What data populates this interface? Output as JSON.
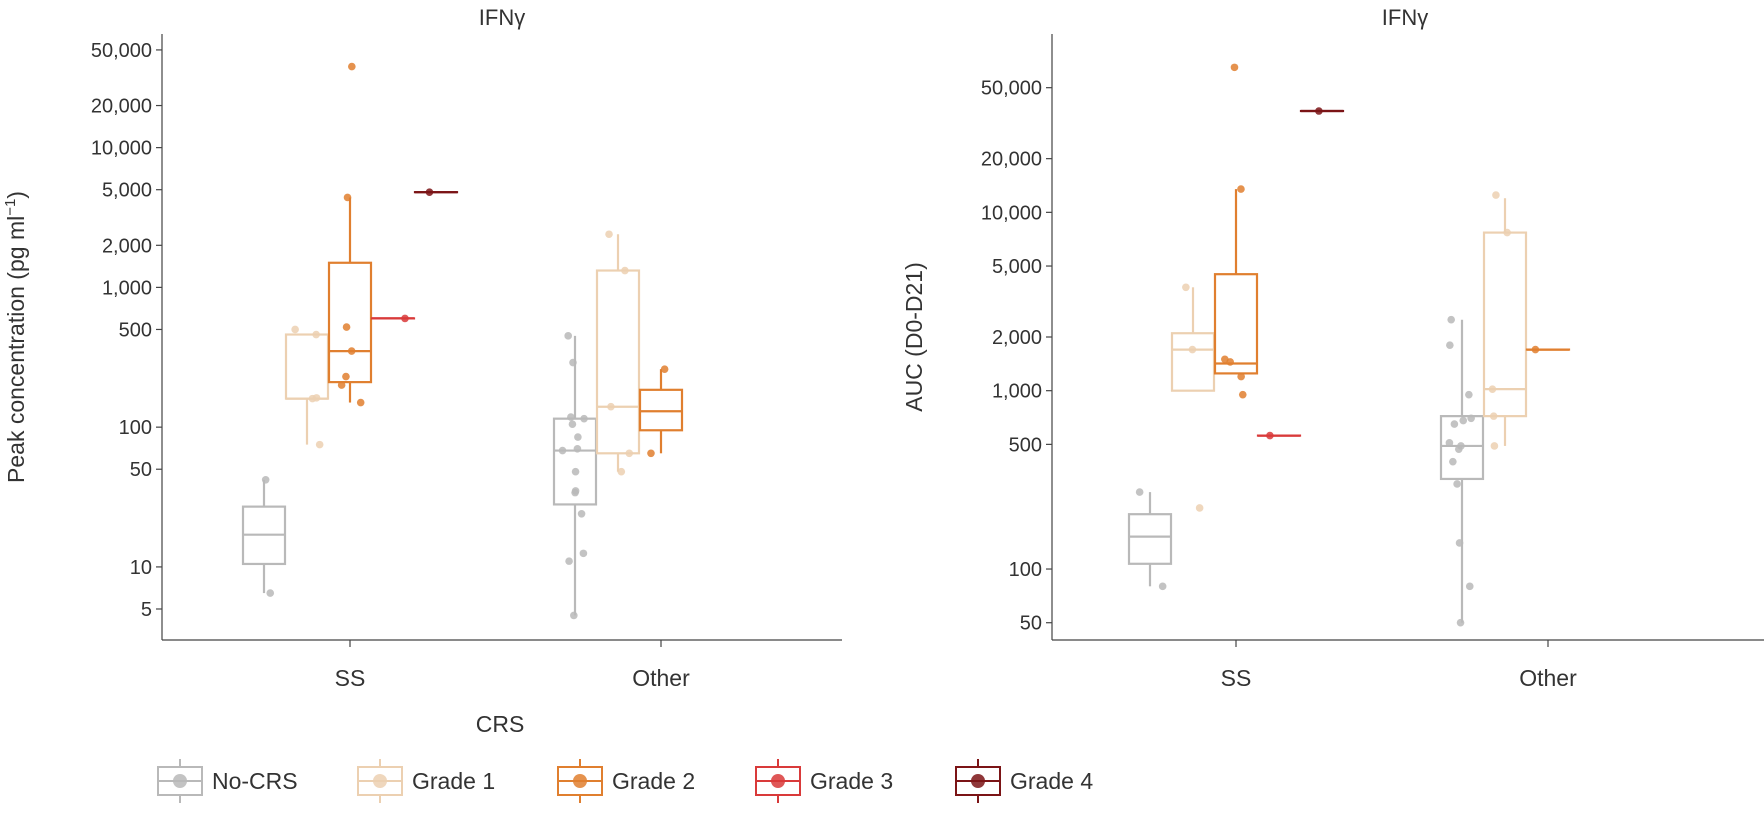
{
  "legend": {
    "title": "CRS",
    "entries": [
      {
        "name": "No-CRS",
        "color": "#b9b9b9"
      },
      {
        "name": "Grade 1",
        "color": "#ecd0b1"
      },
      {
        "name": "Grade 2",
        "color": "#e07f2f"
      },
      {
        "name": "Grade 3",
        "color": "#d93a3a"
      },
      {
        "name": "Grade 4",
        "color": "#7b1416"
      }
    ]
  },
  "chart_data": [
    {
      "type": "box",
      "title": "IFNγ",
      "ylabel_main": "Peak concentration (pg ml",
      "ylabel_sup": "−1",
      "ylabel_tail": ")",
      "yscale": "log",
      "ylim": [
        3,
        65000
      ],
      "yticks": [
        5,
        10,
        50,
        100,
        500,
        1000,
        2000,
        5000,
        10000,
        20000,
        50000
      ],
      "ytick_labels": [
        "5",
        "10",
        "50",
        "100",
        "500",
        "1,000",
        "2,000",
        "5,000",
        "10,000",
        "20,000",
        "50,000"
      ],
      "categories": [
        "SS",
        "Other"
      ],
      "series": [
        {
          "name": "No-CRS",
          "boxes": [
            {
              "category": "SS",
              "whislo": 6.5,
              "q1": 10.5,
              "med": 17,
              "q3": 27,
              "whishi": 42,
              "points": [
                6.5,
                42
              ]
            },
            {
              "category": "Other",
              "whislo": 4.5,
              "q1": 28,
              "med": 68,
              "q3": 115,
              "whishi": 450,
              "points": [
                4.5,
                11,
                12.5,
                24,
                34,
                35,
                48,
                68,
                70,
                85,
                105,
                115,
                118,
                290,
                450
              ]
            }
          ]
        },
        {
          "name": "Grade 1",
          "boxes": [
            {
              "category": "SS",
              "whislo": 75,
              "q1": 160,
              "med": 160,
              "q3": 460,
              "whishi": 460,
              "points": [
                75,
                160,
                162,
                460,
                500
              ]
            },
            {
              "category": "Other",
              "whislo": 48,
              "q1": 65,
              "med": 140,
              "q3": 1320,
              "whishi": 2400,
              "points": [
                48,
                65,
                140,
                1320,
                2400
              ]
            }
          ]
        },
        {
          "name": "Grade 2",
          "boxes": [
            {
              "category": "SS",
              "whislo": 150,
              "q1": 210,
              "med": 350,
              "q3": 1500,
              "whishi": 4400,
              "points": [
                150,
                200,
                230,
                350,
                520,
                4400,
                38000
              ]
            },
            {
              "category": "Other",
              "whislo": 65,
              "q1": 95,
              "med": 130,
              "q3": 185,
              "whishi": 260,
              "points": [
                65,
                260
              ]
            }
          ]
        },
        {
          "name": "Grade 3",
          "boxes": [
            {
              "category": "SS",
              "whislo": 600,
              "q1": 600,
              "med": 600,
              "q3": 600,
              "whishi": 600,
              "points": [
                600
              ]
            }
          ]
        },
        {
          "name": "Grade 4",
          "boxes": [
            {
              "category": "SS",
              "whislo": 4800,
              "q1": 4800,
              "med": 4800,
              "q3": 4800,
              "whishi": 4800,
              "points": [
                4800
              ]
            }
          ]
        }
      ]
    },
    {
      "type": "box",
      "title": "IFNγ",
      "ylabel_main": "AUC (D0-D21)",
      "ylabel_sup": "",
      "ylabel_tail": "",
      "yscale": "log",
      "ylim": [
        40,
        100000
      ],
      "yticks": [
        50,
        100,
        500,
        1000,
        2000,
        5000,
        10000,
        20000,
        50000
      ],
      "ytick_labels": [
        "50",
        "100",
        "500",
        "1,000",
        "2,000",
        "5,000",
        "10,000",
        "20,000",
        "50,000"
      ],
      "categories": [
        "SS",
        "Other"
      ],
      "series": [
        {
          "name": "No-CRS",
          "boxes": [
            {
              "category": "SS",
              "whislo": 80,
              "q1": 107,
              "med": 152,
              "q3": 203,
              "whishi": 270,
              "points": [
                80,
                270
              ]
            },
            {
              "category": "Other",
              "whislo": 50,
              "q1": 320,
              "med": 490,
              "q3": 720,
              "whishi": 2500,
              "points": [
                50,
                80,
                140,
                300,
                400,
                470,
                490,
                510,
                650,
                680,
                700,
                950,
                1800,
                2500
              ]
            }
          ]
        },
        {
          "name": "Grade 1",
          "boxes": [
            {
              "category": "SS",
              "whislo": 1000,
              "q1": 1000,
              "med": 1700,
              "q3": 2100,
              "whishi": 3800,
              "points": [
                220,
                1700,
                3800
              ]
            },
            {
              "category": "Other",
              "whislo": 490,
              "q1": 720,
              "med": 1020,
              "q3": 7700,
              "whishi": 12000,
              "points": [
                490,
                720,
                1020,
                7700,
                12500
              ]
            }
          ]
        },
        {
          "name": "Grade 2",
          "boxes": [
            {
              "category": "SS",
              "whislo": 1250,
              "q1": 1250,
              "med": 1420,
              "q3": 4500,
              "whishi": 13500,
              "points": [
                950,
                1200,
                1450,
                1500,
                13500,
                65000
              ]
            },
            {
              "category": "Other",
              "whislo": 1700,
              "q1": 1700,
              "med": 1700,
              "q3": 1700,
              "whishi": 1700,
              "points": [
                1700
              ]
            }
          ]
        },
        {
          "name": "Grade 3",
          "boxes": [
            {
              "category": "SS",
              "whislo": 560,
              "q1": 560,
              "med": 560,
              "q3": 560,
              "whishi": 560,
              "points": [
                560
              ]
            }
          ]
        },
        {
          "name": "Grade 4",
          "boxes": [
            {
              "category": "SS",
              "whislo": 37000,
              "q1": 37000,
              "med": 37000,
              "q3": 37000,
              "whishi": 37000,
              "points": [
                37000
              ]
            }
          ]
        }
      ]
    }
  ]
}
